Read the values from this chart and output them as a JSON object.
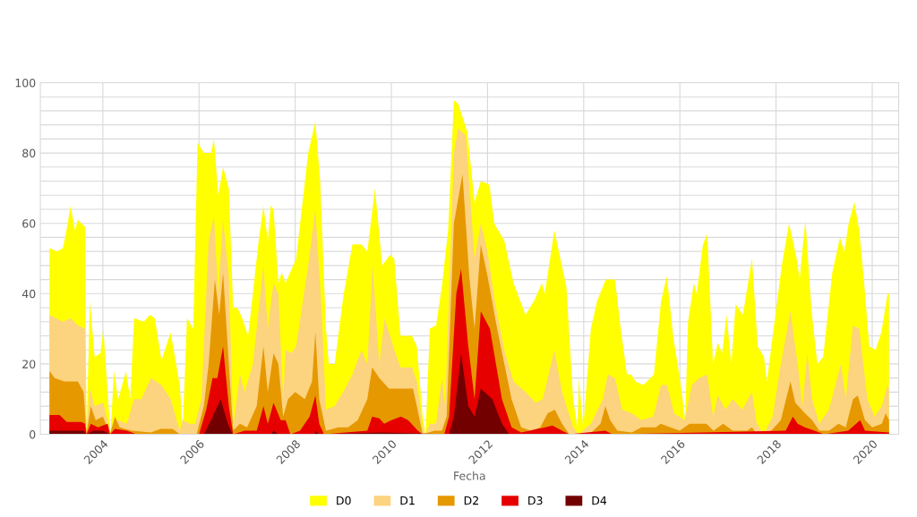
{
  "chart_data": {
    "type": "area",
    "xlabel": "Fecha",
    "xlim": [
      2002.7,
      2020.55
    ],
    "xticks": [
      {
        "value": 2004,
        "label": "2004"
      },
      {
        "value": 2006,
        "label": "2006"
      },
      {
        "value": 2008,
        "label": "2008"
      },
      {
        "value": 2010,
        "label": "2010"
      },
      {
        "value": 2012,
        "label": "2012"
      },
      {
        "value": 2014,
        "label": "2014"
      },
      {
        "value": 2016,
        "label": "2016"
      },
      {
        "value": 2018,
        "label": "2018"
      },
      {
        "value": 2020,
        "label": "2020"
      }
    ],
    "ylim": [
      0,
      100
    ],
    "yticks": [
      0,
      {
        "value": 4,
        "label": null
      },
      {
        "value": 8,
        "label": null
      },
      {
        "value": 12,
        "label": null
      },
      {
        "value": 16,
        "label": null
      },
      20,
      {
        "value": 24,
        "label": null
      },
      {
        "value": 28,
        "label": null
      },
      {
        "value": 32,
        "label": null
      },
      {
        "value": 36,
        "label": null
      },
      40,
      {
        "value": 44,
        "label": null
      },
      {
        "value": 48,
        "label": null
      },
      {
        "value": 52,
        "label": null
      },
      {
        "value": 56,
        "label": null
      },
      60,
      {
        "value": 64,
        "label": null
      },
      {
        "value": 68,
        "label": null
      },
      {
        "value": 72,
        "label": null
      },
      {
        "value": 76,
        "label": null
      },
      80,
      {
        "value": 84,
        "label": null
      },
      {
        "value": 88,
        "label": null
      },
      {
        "value": 92,
        "label": null
      },
      {
        "value": 96,
        "label": null
      },
      100
    ],
    "grid": true,
    "legend": "bottom",
    "series": [
      {
        "name": "D0",
        "color": "#ffff00",
        "x": [
          2002.89,
          2003.05,
          2003.17,
          2003.23,
          2003.33,
          2003.42,
          2003.48,
          2003.63,
          2003.66,
          2003.73,
          2003.83,
          2003.95,
          2004.01,
          2004.16,
          2004.23,
          2004.32,
          2004.48,
          2004.57,
          2004.65,
          2004.85,
          2004.98,
          2005.08,
          2005.22,
          2005.41,
          2005.6,
          2005.66,
          2005.75,
          2005.88,
          2005.97,
          2006.1,
          2006.25,
          2006.31,
          2006.4,
          2006.5,
          2006.62,
          2006.71,
          2006.8,
          2006.9,
          2007.02,
          2007.12,
          2007.24,
          2007.34,
          2007.43,
          2007.49,
          2007.55,
          2007.65,
          2007.72,
          2007.8,
          2008.02,
          2008.27,
          2008.42,
          2008.52,
          2008.64,
          2008.7,
          2008.82,
          2009.01,
          2009.19,
          2009.38,
          2009.5,
          2009.66,
          2009.81,
          2009.97,
          2010.06,
          2010.19,
          2010.43,
          2010.53,
          2010.65,
          2010.71,
          2010.8,
          2010.93,
          2011.05,
          2011.18,
          2011.3,
          2011.39,
          2011.58,
          2011.73,
          2011.86,
          2012.04,
          2012.14,
          2012.35,
          2012.54,
          2012.79,
          2012.97,
          2013.13,
          2013.19,
          2013.39,
          2013.64,
          2013.78,
          2013.87,
          2013.9,
          2013.99,
          2014.15,
          2014.28,
          2014.46,
          2014.65,
          2014.77,
          2014.9,
          2014.99,
          2015.08,
          2015.24,
          2015.46,
          2015.61,
          2015.73,
          2015.86,
          2016.01,
          2016.11,
          2016.17,
          2016.29,
          2016.35,
          2016.48,
          2016.57,
          2016.69,
          2016.79,
          2016.88,
          2016.97,
          2017.07,
          2017.16,
          2017.31,
          2017.5,
          2017.62,
          2017.75,
          2017.81,
          2017.93,
          2018.12,
          2018.27,
          2018.43,
          2018.49,
          2018.61,
          2018.74,
          2018.86,
          2018.98,
          2019.17,
          2019.33,
          2019.42,
          2019.51,
          2019.63,
          2019.73,
          2019.82,
          2019.94,
          2020.07,
          2020.19,
          2020.32,
          2020.35
        ],
        "values": [
          53,
          52,
          53,
          57,
          65,
          58,
          61,
          59,
          0,
          38,
          22,
          23,
          30,
          0,
          18,
          10,
          18,
          10,
          33,
          32,
          34,
          33,
          21,
          29,
          14,
          1,
          33,
          30,
          83,
          80,
          80,
          84,
          68,
          76,
          70,
          36,
          36,
          33,
          28,
          40,
          55,
          65,
          55,
          65,
          64,
          43,
          46,
          43,
          50,
          80,
          89,
          72,
          30,
          20,
          20,
          40,
          54,
          54,
          52,
          70,
          48,
          51,
          50,
          28,
          28,
          25,
          5,
          0,
          30,
          31,
          42,
          58,
          95,
          94,
          86,
          66,
          72,
          71,
          60,
          55,
          43,
          34,
          38,
          43,
          40,
          58,
          42,
          10,
          2,
          16,
          2,
          30,
          38,
          44,
          44,
          30,
          17,
          17,
          15,
          14,
          17,
          38,
          45,
          28,
          15,
          4,
          32,
          43,
          40,
          54,
          57,
          20,
          26,
          23,
          34,
          20,
          37,
          34,
          50,
          25,
          22,
          15,
          28,
          48,
          60,
          50,
          44,
          61,
          35,
          20,
          22,
          46,
          56,
          52,
          60,
          66,
          58,
          45,
          25,
          24,
          29,
          40,
          40
        ]
      },
      {
        "name": "D1",
        "color": "#fcd37f",
        "x": [
          2002.89,
          2003.17,
          2003.33,
          2003.48,
          2003.63,
          2003.66,
          2003.73,
          2003.83,
          2004.01,
          2004.16,
          2004.23,
          2004.32,
          2004.5,
          2004.65,
          2004.8,
          2005.0,
          2005.22,
          2005.41,
          2005.6,
          2005.66,
          2005.8,
          2005.92,
          2006.05,
          2006.2,
          2006.31,
          2006.4,
          2006.5,
          2006.62,
          2006.71,
          2006.85,
          2006.95,
          2007.12,
          2007.34,
          2007.43,
          2007.55,
          2007.65,
          2007.75,
          2007.8,
          2007.92,
          2008.02,
          2008.27,
          2008.42,
          2008.55,
          2008.64,
          2008.82,
          2009.0,
          2009.19,
          2009.38,
          2009.5,
          2009.61,
          2009.75,
          2009.86,
          2010.06,
          2010.19,
          2010.43,
          2010.53,
          2010.65,
          2010.71,
          2010.8,
          2010.93,
          2011.05,
          2011.12,
          2011.3,
          2011.39,
          2011.55,
          2011.73,
          2011.86,
          2012.0,
          2012.15,
          2012.35,
          2012.54,
          2012.79,
          2013.0,
          2013.15,
          2013.39,
          2013.55,
          2013.78,
          2013.9,
          2014.15,
          2014.4,
          2014.5,
          2014.65,
          2014.8,
          2015.0,
          2015.2,
          2015.45,
          2015.61,
          2015.73,
          2015.88,
          2016.1,
          2016.25,
          2016.4,
          2016.57,
          2016.69,
          2016.79,
          2016.95,
          2017.1,
          2017.3,
          2017.5,
          2017.6,
          2017.75,
          2017.93,
          2018.1,
          2018.3,
          2018.45,
          2018.55,
          2018.65,
          2018.75,
          2018.9,
          2019.1,
          2019.35,
          2019.45,
          2019.6,
          2019.73,
          2019.9,
          2020.05,
          2020.2,
          2020.32,
          2020.35
        ],
        "values": [
          34,
          32,
          33,
          31,
          30,
          0,
          13,
          8,
          9,
          0,
          4,
          4,
          3,
          10,
          10,
          16,
          14,
          10,
          1,
          4,
          3,
          3,
          10,
          55,
          62,
          40,
          61,
          45,
          2,
          17,
          12,
          20,
          48,
          30,
          43,
          40,
          10,
          24,
          23,
          25,
          48,
          64,
          35,
          7,
          8,
          12,
          17,
          24,
          20,
          48,
          20,
          33,
          24,
          19,
          19,
          15,
          2,
          0,
          3,
          3,
          16,
          8,
          80,
          87,
          85,
          50,
          60,
          52,
          38,
          24,
          15,
          12,
          9,
          10,
          24,
          12,
          2,
          0,
          3,
          10,
          17,
          16,
          7,
          6,
          4,
          5,
          14,
          14,
          6,
          4,
          14,
          16,
          17,
          5,
          11,
          7,
          10,
          7,
          12,
          3,
          0,
          5,
          20,
          35,
          20,
          8,
          23,
          10,
          3,
          7,
          20,
          10,
          31,
          30,
          10,
          5,
          8,
          14,
          13
        ]
      },
      {
        "name": "D2",
        "color": "#e69800",
        "x": [
          2002.89,
          2003.0,
          2003.2,
          2003.48,
          2003.6,
          2003.66,
          2003.75,
          2003.85,
          2004.0,
          2004.15,
          2004.25,
          2004.35,
          2004.6,
          2005.0,
          2005.2,
          2005.45,
          2005.6,
          2005.95,
          2006.1,
          2006.2,
          2006.33,
          2006.42,
          2006.5,
          2006.62,
          2006.71,
          2006.85,
          2007.0,
          2007.2,
          2007.34,
          2007.43,
          2007.55,
          2007.65,
          2007.75,
          2007.85,
          2008.0,
          2008.2,
          2008.35,
          2008.42,
          2008.5,
          2008.64,
          2008.9,
          2009.1,
          2009.3,
          2009.5,
          2009.6,
          2009.75,
          2009.95,
          2010.2,
          2010.45,
          2010.53,
          2010.65,
          2010.9,
          2011.05,
          2011.15,
          2011.3,
          2011.48,
          2011.62,
          2011.73,
          2011.86,
          2012.0,
          2012.2,
          2012.35,
          2012.5,
          2012.7,
          2012.9,
          2013.1,
          2013.25,
          2013.4,
          2013.55,
          2013.7,
          2014.1,
          2014.2,
          2014.35,
          2014.45,
          2014.55,
          2014.7,
          2015.0,
          2015.2,
          2015.5,
          2015.6,
          2015.8,
          2016.0,
          2016.2,
          2016.4,
          2016.55,
          2016.7,
          2016.9,
          2017.1,
          2017.4,
          2017.5,
          2017.6,
          2017.9,
          2018.1,
          2018.3,
          2018.4,
          2018.6,
          2018.75,
          2018.9,
          2019.1,
          2019.3,
          2019.45,
          2019.6,
          2019.7,
          2019.85,
          2020.0,
          2020.2,
          2020.28,
          2020.35
        ],
        "values": [
          18,
          16,
          15,
          15,
          12,
          0,
          8,
          4,
          5,
          0,
          5,
          2,
          1,
          0.5,
          1.5,
          1.5,
          0,
          0,
          8,
          20,
          44,
          34,
          46,
          20,
          1,
          3,
          2,
          8,
          25,
          12,
          23,
          20,
          5,
          10,
          12,
          10,
          15,
          29,
          10,
          1,
          2,
          2,
          4,
          10,
          19,
          16,
          13,
          13,
          13,
          8,
          0,
          1,
          1,
          5,
          60,
          74,
          45,
          30,
          54,
          45,
          30,
          20,
          10,
          2,
          1,
          2,
          6,
          7,
          3,
          0,
          0,
          1,
          3,
          8,
          4,
          1,
          0.5,
          2,
          2,
          3,
          2,
          1,
          3,
          3,
          3,
          1,
          3,
          1,
          1,
          2,
          0,
          1,
          4,
          15,
          9,
          6,
          4,
          1,
          1,
          3,
          2,
          10,
          11,
          4,
          2,
          3,
          6,
          4
        ]
      },
      {
        "name": "D3",
        "color": "#e60000",
        "x": [
          2002.89,
          2003.1,
          2003.25,
          2003.55,
          2003.63,
          2003.66,
          2003.75,
          2003.9,
          2004.1,
          2004.15,
          2004.25,
          2004.5,
          2004.7,
          2006.0,
          2006.15,
          2006.28,
          2006.38,
          2006.5,
          2006.62,
          2006.71,
          2006.95,
          2007.2,
          2007.34,
          2007.43,
          2007.55,
          2007.7,
          2007.8,
          2007.9,
          2008.1,
          2008.3,
          2008.42,
          2008.5,
          2008.6,
          2009.5,
          2009.6,
          2009.75,
          2009.85,
          2010.0,
          2010.2,
          2010.35,
          2010.55,
          2010.65,
          2011.1,
          2011.2,
          2011.35,
          2011.45,
          2011.6,
          2011.73,
          2011.86,
          2012.05,
          2012.3,
          2012.5,
          2012.7,
          2013.2,
          2013.35,
          2013.55,
          2013.7,
          2014.45,
          2014.6,
          2018.2,
          2018.35,
          2018.45,
          2018.6,
          2018.8,
          2019.0,
          2019.5,
          2019.75,
          2019.85,
          2020.35
        ],
        "values": [
          5.5,
          5.5,
          3.5,
          3.5,
          3,
          0,
          3,
          2,
          3,
          0,
          1.5,
          1,
          0,
          0,
          7,
          16,
          16,
          25,
          8,
          0,
          1,
          1,
          8,
          3,
          9,
          4,
          4,
          0,
          1,
          5,
          11,
          3,
          0,
          1,
          5,
          4.5,
          3,
          4,
          5,
          4,
          1,
          0,
          0,
          5,
          40,
          47,
          25,
          10,
          35,
          30,
          10,
          2,
          0.5,
          2,
          2.5,
          1,
          0,
          1,
          0,
          1,
          5,
          3,
          2,
          1,
          0,
          1,
          4,
          1,
          0.5
        ]
      },
      {
        "name": "D4",
        "color": "#730000",
        "x": [
          2002.89,
          2003.6,
          2003.66,
          2003.8,
          2004.0,
          2004.15,
          2006.1,
          2006.25,
          2006.45,
          2006.6,
          2006.7,
          2007.5,
          2007.55,
          2007.65,
          2008.4,
          2008.42,
          2008.5,
          2009.8,
          2011.2,
          2011.3,
          2011.45,
          2011.6,
          2011.73,
          2011.86,
          2012.1,
          2012.3,
          2012.45,
          2020.35
        ],
        "values": [
          1,
          1,
          0,
          1,
          1,
          0,
          0,
          4,
          10,
          3,
          0,
          0,
          1,
          0,
          0,
          1,
          0,
          0.5,
          0,
          5,
          23,
          8,
          5,
          13,
          10,
          3,
          0,
          0
        ]
      }
    ]
  }
}
